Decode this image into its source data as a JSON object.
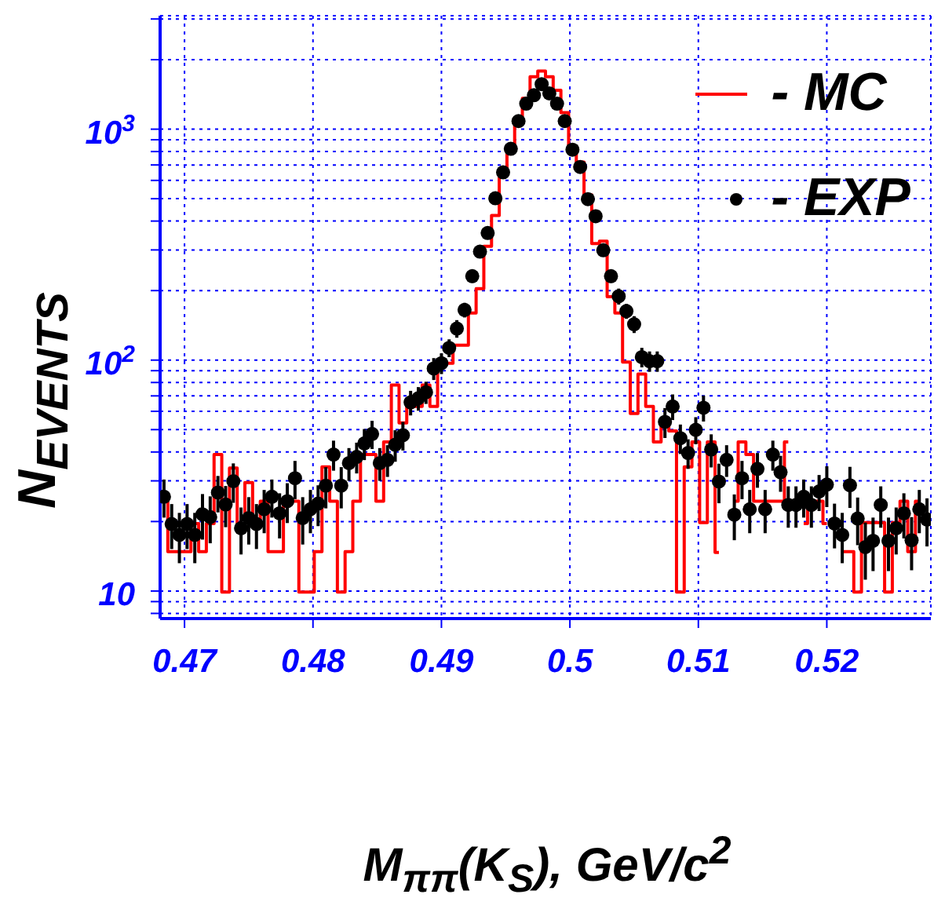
{
  "chart_data": {
    "type": "scatter",
    "xlabel": "M$_{ππ}$(K$_{S}$), GeV/c$^{2}$",
    "ylabel": "N$_{EVENTS}$",
    "x": [
      0.4684,
      0.469,
      0.4696,
      0.4702,
      0.4708,
      0.4714,
      0.472,
      0.4726,
      0.4732,
      0.4738,
      0.4744,
      0.475,
      0.4756,
      0.4762,
      0.4768,
      0.4774,
      0.478,
      0.4786,
      0.4792,
      0.4798,
      0.4804,
      0.481,
      0.4816,
      0.4822,
      0.4828,
      0.4834,
      0.484,
      0.4846,
      0.4852,
      0.4858,
      0.4864,
      0.487,
      0.4876,
      0.4882,
      0.4888,
      0.4894,
      0.49,
      0.4906,
      0.4912,
      0.4918,
      0.4924,
      0.493,
      0.4936,
      0.4942,
      0.4948,
      0.4954,
      0.496,
      0.4966,
      0.4972,
      0.4978,
      0.4984,
      0.499,
      0.4996,
      0.5002,
      0.5008,
      0.5014,
      0.502,
      0.5026,
      0.5032,
      0.5038,
      0.5044,
      0.505,
      0.5056,
      0.5062,
      0.5068,
      0.5074,
      0.508,
      0.5086,
      0.5092,
      0.5098,
      0.5104,
      0.511,
      0.5116,
      0.5122,
      0.5128,
      0.5134,
      0.514,
      0.5146,
      0.5152,
      0.5158,
      0.5164,
      0.517,
      0.5176,
      0.5182,
      0.5188,
      0.5194,
      0.52,
      0.5206,
      0.5212,
      0.5218,
      0.5224,
      0.523,
      0.5236,
      0.5242,
      0.5248,
      0.5254,
      0.526,
      0.5266,
      0.5272,
      0.5278
    ],
    "series": [
      {
        "name": "- MC",
        "type": "step",
        "color": "#ff0000",
        "values": [
          24.5,
          14.8,
          14.8,
          14.8,
          19.6,
          14.8,
          19.6,
          39,
          9.9,
          34.1,
          19.6,
          29.5,
          19.6,
          24.5,
          14.8,
          14.8,
          24.5,
          24.5,
          9.9,
          9.9,
          14.8,
          34.5,
          24.5,
          9.9,
          14.8,
          24.5,
          39,
          39,
          24.5,
          44.2,
          78,
          53.5,
          63,
          63,
          78,
          63,
          97,
          97,
          116,
          116,
          160,
          204,
          311,
          423,
          650,
          825,
          1094,
          1360,
          1687,
          1787,
          1687,
          1475,
          1178,
          832,
          720,
          519,
          320,
          327,
          188,
          160,
          98,
          58.7,
          87,
          63,
          44.2,
          53.5,
          49.3,
          9.9,
          34.5,
          44.2,
          19.8,
          44.2,
          14.7,
          null,
          24.5,
          44.2,
          39,
          24.5,
          24.5,
          24.5,
          24.5,
          44.2,
          null,
          19.6,
          24.5,
          24.5,
          19.6,
          null,
          14.8,
          14.8,
          9.9,
          19.8,
          19.8,
          19.8,
          9.9,
          19.8,
          24.5,
          14.8,
          24.5,
          null
        ]
      },
      {
        "name": "- EXP",
        "color": "#000000",
        "marker": "circle",
        "values": [
          25.6,
          19.5,
          17.5,
          19.5,
          17.5,
          21.5,
          20.9,
          26.7,
          23.7,
          29.9,
          18.7,
          20.7,
          19.5,
          22.6,
          25.6,
          21.7,
          24.5,
          30.8,
          20.7,
          22.6,
          23.9,
          28.6,
          39,
          28.6,
          35.8,
          38.1,
          43.6,
          47.9,
          35.8,
          37,
          43,
          47.3,
          65.6,
          68.4,
          72.6,
          92,
          97,
          113,
          137,
          165,
          231,
          295,
          355,
          502,
          650,
          822,
          1084,
          1290,
          1403,
          1567,
          1429,
          1290,
          1084,
          815,
          686,
          498,
          420,
          299,
          231,
          189,
          163,
          143,
          103,
          99,
          99,
          54,
          63,
          45.9,
          39.6,
          49.9,
          62.2,
          41,
          29.8,
          37,
          21.4,
          30.8,
          22.6,
          33.8,
          22.6,
          39,
          32.7,
          23.6,
          23.6,
          25.6,
          23.6,
          27,
          28.9,
          19.6,
          17.5,
          28.7,
          20.6,
          15.5,
          16.5,
          23.6,
          16.5,
          18.7,
          21.7,
          16.6,
          22.6,
          20.4
        ],
        "errors": [
          4.8,
          4.3,
          4.3,
          4.3,
          4.3,
          4.8,
          4.8,
          4.8,
          4.8,
          5.8,
          4.3,
          4.8,
          4.3,
          4.8,
          4.8,
          4.8,
          4.8,
          5.8,
          4.8,
          4.8,
          4.8,
          5.8,
          5.8,
          5.8,
          5.8,
          5.8,
          6.7,
          6.7,
          5.8,
          5.8,
          6.7,
          6.7,
          8,
          8,
          8,
          10,
          10,
          10,
          12,
          12,
          15,
          18,
          18,
          22,
          27,
          27,
          36,
          36,
          36,
          36,
          36,
          36,
          36,
          27,
          27,
          22,
          22,
          18,
          15,
          15,
          12,
          12,
          10,
          10,
          10,
          8,
          8,
          6.7,
          5.8,
          6.7,
          8,
          6.7,
          5.8,
          5.8,
          4.8,
          5.8,
          4.8,
          5.8,
          4.8,
          5.8,
          5.8,
          4.8,
          4.8,
          4.8,
          4.8,
          4.8,
          5.8,
          4.3,
          4.3,
          5.8,
          4.8,
          4.3,
          4.3,
          4.8,
          4.3,
          4.3,
          4.8,
          4.3,
          4.8,
          4.8
        ]
      }
    ],
    "xlim": [
      0.4681,
      0.5281
    ],
    "xticks": [
      0.47,
      0.48,
      0.49,
      0.5,
      0.51,
      0.52
    ],
    "log": true,
    "ylim": [
      7.6,
      3100
    ],
    "yticks": [
      {
        "value": 8,
        "label": null
      },
      {
        "value": 9,
        "label": null
      },
      {
        "value": 10,
        "label": "10"
      },
      {
        "value": 20,
        "label": null
      },
      {
        "value": 30,
        "label": null
      },
      {
        "value": 40,
        "label": null
      },
      {
        "value": 50,
        "label": null
      },
      {
        "value": 60,
        "label": null
      },
      {
        "value": 70,
        "label": null
      },
      {
        "value": 80,
        "label": null
      },
      {
        "value": 90,
        "label": null
      },
      {
        "value": 100,
        "label": "10$^{2}$"
      },
      {
        "value": 200,
        "label": null
      },
      {
        "value": 300,
        "label": null
      },
      {
        "value": 400,
        "label": null
      },
      {
        "value": 500,
        "label": null
      },
      {
        "value": 600,
        "label": null
      },
      {
        "value": 700,
        "label": null
      },
      {
        "value": 800,
        "label": null
      },
      {
        "value": 900,
        "label": null
      },
      {
        "value": 1000,
        "label": "10$^{3}$"
      },
      {
        "value": 2000,
        "label": null
      },
      {
        "value": 3000,
        "label": null
      }
    ],
    "grid": true,
    "legend": "top right"
  }
}
